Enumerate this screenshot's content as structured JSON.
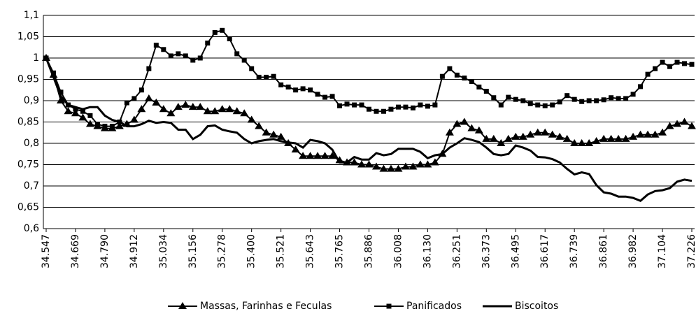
{
  "chart_data": {
    "type": "line",
    "categories": [
      "34.547",
      null,
      null,
      null,
      "34.669",
      null,
      null,
      null,
      "34.790",
      null,
      null,
      null,
      "34.912",
      null,
      null,
      null,
      "35.034",
      null,
      null,
      null,
      "35.156",
      null,
      null,
      null,
      "35.278",
      null,
      null,
      null,
      "35.400",
      null,
      null,
      null,
      "35.521",
      null,
      null,
      null,
      "35.643",
      null,
      null,
      null,
      "35.765",
      null,
      null,
      null,
      "35.886",
      null,
      null,
      null,
      "36.008",
      null,
      null,
      null,
      "36.130",
      null,
      null,
      null,
      "36.251",
      null,
      null,
      null,
      "36.373",
      null,
      null,
      null,
      "36.495",
      null,
      null,
      null,
      "36.617",
      null,
      null,
      null,
      "36.739",
      null,
      null,
      null,
      "36.861",
      null,
      null,
      null,
      "36.982",
      null,
      null,
      null,
      "37.104",
      null,
      null,
      null,
      "37.226"
    ],
    "series": [
      {
        "name": "Massas, Farinhas e Feculas",
        "color": "#000000",
        "marker": "triangle",
        "values": [
          1.0,
          0.96,
          0.9,
          0.875,
          0.87,
          0.86,
          0.845,
          0.84,
          0.835,
          0.835,
          0.84,
          0.845,
          0.855,
          0.88,
          0.905,
          0.895,
          0.88,
          0.87,
          0.885,
          0.89,
          0.885,
          0.885,
          0.875,
          0.875,
          0.88,
          0.88,
          0.875,
          0.87,
          0.855,
          0.84,
          0.825,
          0.82,
          0.815,
          0.8,
          0.785,
          0.77,
          0.77,
          0.77,
          0.77,
          0.77,
          0.76,
          0.755,
          0.755,
          0.75,
          0.75,
          0.745,
          0.74,
          0.74,
          0.74,
          0.745,
          0.745,
          0.75,
          0.75,
          0.755,
          0.775,
          0.825,
          0.845,
          0.85,
          0.835,
          0.83,
          0.81,
          0.81,
          0.8,
          0.81,
          0.815,
          0.815,
          0.82,
          0.825,
          0.825,
          0.82,
          0.815,
          0.81,
          0.8,
          0.8,
          0.8,
          0.805,
          0.81,
          0.81,
          0.81,
          0.81,
          0.815,
          0.82,
          0.82,
          0.82,
          0.825,
          0.84,
          0.845,
          0.85,
          0.84
        ]
      },
      {
        "name": "Panificados",
        "color": "#000000",
        "marker": "square",
        "values": [
          1.0,
          0.965,
          0.92,
          0.89,
          0.88,
          0.875,
          0.865,
          0.845,
          0.84,
          0.84,
          0.85,
          0.895,
          0.905,
          0.925,
          0.975,
          1.03,
          1.02,
          1.005,
          1.01,
          1.005,
          0.995,
          1.0,
          1.035,
          1.06,
          1.065,
          1.045,
          1.01,
          0.995,
          0.975,
          0.955,
          0.955,
          0.957,
          0.937,
          0.932,
          0.925,
          0.928,
          0.925,
          0.915,
          0.908,
          0.91,
          0.888,
          0.892,
          0.89,
          0.89,
          0.88,
          0.875,
          0.875,
          0.88,
          0.885,
          0.885,
          0.883,
          0.89,
          0.887,
          0.89,
          0.957,
          0.975,
          0.96,
          0.953,
          0.945,
          0.932,
          0.922,
          0.907,
          0.89,
          0.908,
          0.903,
          0.9,
          0.893,
          0.89,
          0.888,
          0.89,
          0.897,
          0.912,
          0.903,
          0.898,
          0.9,
          0.9,
          0.902,
          0.907,
          0.905,
          0.905,
          0.915,
          0.933,
          0.962,
          0.975,
          0.99,
          0.98,
          0.99,
          0.987,
          0.985
        ]
      },
      {
        "name": "Biscoitos",
        "color": "#000000",
        "marker": "none",
        "values": [
          1.0,
          0.955,
          0.91,
          0.89,
          0.885,
          0.88,
          0.885,
          0.885,
          0.865,
          0.855,
          0.85,
          0.84,
          0.84,
          0.845,
          0.853,
          0.848,
          0.85,
          0.848,
          0.832,
          0.832,
          0.81,
          0.82,
          0.84,
          0.842,
          0.832,
          0.828,
          0.825,
          0.81,
          0.8,
          0.805,
          0.808,
          0.81,
          0.805,
          0.802,
          0.8,
          0.79,
          0.808,
          0.805,
          0.8,
          0.785,
          0.755,
          0.755,
          0.768,
          0.762,
          0.762,
          0.777,
          0.772,
          0.775,
          0.787,
          0.787,
          0.787,
          0.78,
          0.765,
          0.772,
          0.775,
          0.79,
          0.8,
          0.812,
          0.808,
          0.803,
          0.79,
          0.775,
          0.772,
          0.775,
          0.795,
          0.79,
          0.783,
          0.768,
          0.767,
          0.763,
          0.755,
          0.74,
          0.727,
          0.732,
          0.728,
          0.702,
          0.685,
          0.682,
          0.675,
          0.675,
          0.672,
          0.665,
          0.68,
          0.688,
          0.69,
          0.695,
          0.71,
          0.715,
          0.712
        ]
      }
    ],
    "ylim": [
      0.6,
      1.1
    ],
    "yticks": [
      {
        "value": 0.6,
        "label": "0,6"
      },
      {
        "value": 0.65,
        "label": "0,65"
      },
      {
        "value": 0.7,
        "label": "0,7"
      },
      {
        "value": 0.75,
        "label": "0,75"
      },
      {
        "value": 0.8,
        "label": "0,8"
      },
      {
        "value": 0.85,
        "label": "0,85"
      },
      {
        "value": 0.9,
        "label": "0,9"
      },
      {
        "value": 0.95,
        "label": "0,95"
      },
      1,
      {
        "value": 1.05,
        "label": "1,05"
      },
      {
        "value": 1.1,
        "label": "1,1"
      }
    ],
    "grid": true,
    "legend": "bottom"
  }
}
